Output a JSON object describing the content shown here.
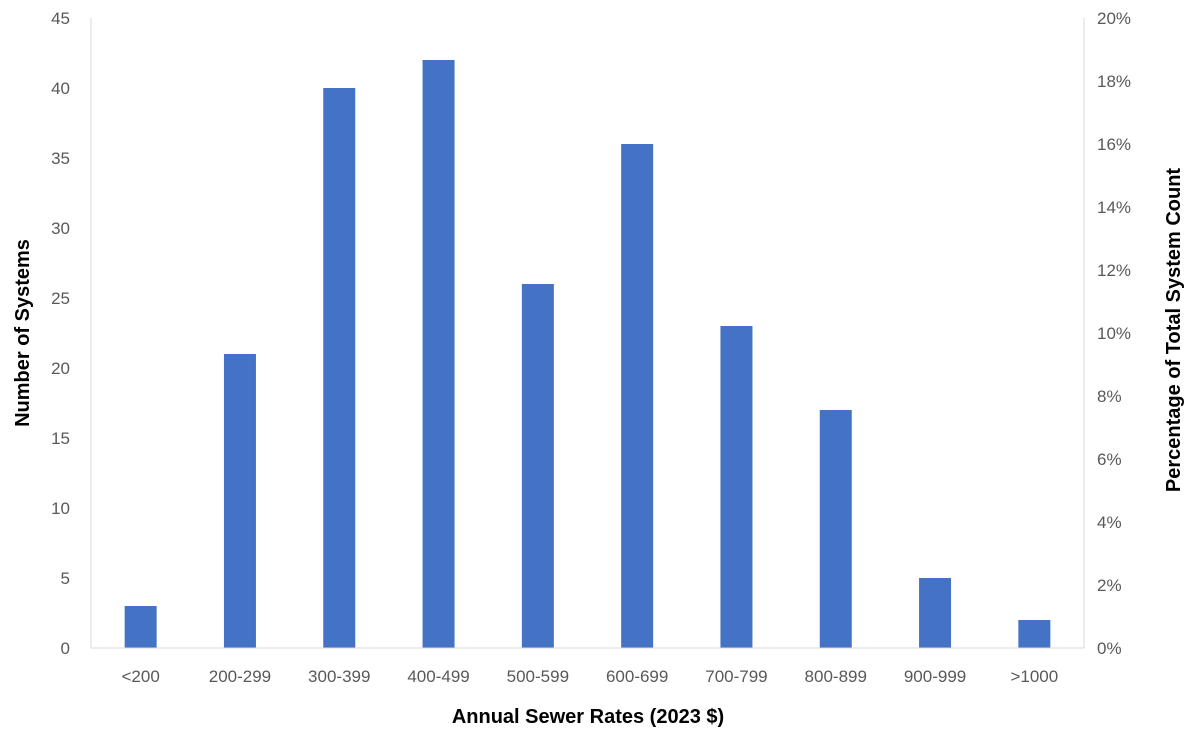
{
  "chart_data": {
    "type": "bar",
    "categories": [
      "<200",
      "200-299",
      "300-399",
      "400-499",
      "500-599",
      "600-699",
      "700-799",
      "800-899",
      "900-999",
      ">1000"
    ],
    "values": [
      3,
      21,
      40,
      42,
      26,
      36,
      23,
      17,
      5,
      2
    ],
    "xlabel": "Annual Sewer Rates (2023 $)",
    "ylabel": "Number of Systems",
    "y2label": "Percentage of Total System Count",
    "ylim": [
      0,
      45
    ],
    "yticks": [
      0,
      5,
      10,
      15,
      20,
      25,
      30,
      35,
      40,
      45
    ],
    "y2lim": [
      0,
      0.2
    ],
    "y2ticks": [
      "0%",
      "2%",
      "4%",
      "6%",
      "8%",
      "10%",
      "12%",
      "14%",
      "16%",
      "18%",
      "20%"
    ],
    "grid": false,
    "legend": "none",
    "bar_color": "#4472C4"
  }
}
